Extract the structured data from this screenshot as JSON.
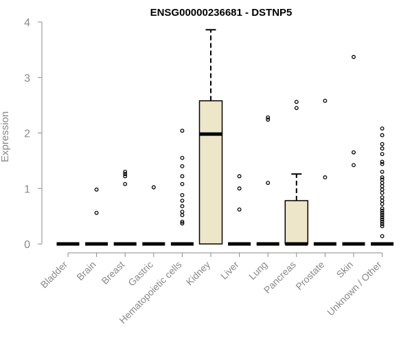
{
  "chart_data": {
    "type": "boxplot",
    "title": "ENSG00000236681 - DSTNP5",
    "xlabel": "",
    "ylabel": "Expression",
    "ylim": [
      0,
      4
    ],
    "yticks": [
      0,
      1,
      2,
      3,
      4
    ],
    "grid": false,
    "box_fill": "#ede6c9",
    "box_stroke": "#000000",
    "categories": [
      "Bladder",
      "Brain",
      "Breast",
      "Gastric",
      "Hematopoietic cells",
      "Kidney",
      "Liver",
      "Lung",
      "Pancreas",
      "Prostate",
      "Skin",
      "Unknown / Other"
    ],
    "boxes": [
      {
        "category": "Bladder",
        "q1": 0,
        "median": 0,
        "q3": 0,
        "whisker_low": 0,
        "whisker_high": 0,
        "outliers": []
      },
      {
        "category": "Brain",
        "q1": 0,
        "median": 0,
        "q3": 0,
        "whisker_low": 0,
        "whisker_high": 0,
        "outliers": [
          0.98,
          0.56
        ]
      },
      {
        "category": "Breast",
        "q1": 0,
        "median": 0,
        "q3": 0,
        "whisker_low": 0,
        "whisker_high": 0,
        "outliers": [
          1.3,
          1.26,
          1.22,
          1.08
        ]
      },
      {
        "category": "Gastric",
        "q1": 0,
        "median": 0,
        "q3": 0,
        "whisker_low": 0,
        "whisker_high": 0,
        "outliers": [
          1.02
        ]
      },
      {
        "category": "Hematopoietic cells",
        "q1": 0,
        "median": 0,
        "q3": 0,
        "whisker_low": 0,
        "whisker_high": 0,
        "outliers": [
          2.04,
          1.55,
          1.4,
          1.22,
          1.08,
          0.88,
          0.78,
          0.68,
          0.58,
          0.52,
          0.4,
          0.37
        ]
      },
      {
        "category": "Kidney",
        "q1": 0,
        "median": 1.98,
        "q3": 2.58,
        "whisker_low": 0,
        "whisker_high": 3.86,
        "outliers": []
      },
      {
        "category": "Liver",
        "q1": 0,
        "median": 0,
        "q3": 0,
        "whisker_low": 0,
        "whisker_high": 0,
        "outliers": [
          1.22,
          1.0,
          0.62
        ]
      },
      {
        "category": "Lung",
        "q1": 0,
        "median": 0,
        "q3": 0,
        "whisker_low": 0,
        "whisker_high": 0,
        "outliers": [
          2.28,
          2.24,
          1.1
        ]
      },
      {
        "category": "Pancreas",
        "q1": 0,
        "median": 0,
        "q3": 0.78,
        "whisker_low": 0,
        "whisker_high": 1.26,
        "outliers": [
          2.56,
          2.45
        ]
      },
      {
        "category": "Prostate",
        "q1": 0,
        "median": 0,
        "q3": 0,
        "whisker_low": 0,
        "whisker_high": 0,
        "outliers": [
          2.58,
          1.2
        ]
      },
      {
        "category": "Skin",
        "q1": 0,
        "median": 0,
        "q3": 0,
        "whisker_low": 0,
        "whisker_high": 0,
        "outliers": [
          3.37,
          1.65,
          1.42
        ]
      },
      {
        "category": "Unknown / Other",
        "q1": 0,
        "median": 0,
        "q3": 0,
        "whisker_low": 0,
        "whisker_high": 0,
        "outliers": [
          2.08,
          1.96,
          1.8,
          1.72,
          1.62,
          1.48,
          1.44,
          1.3,
          1.2,
          1.16,
          1.1,
          1.04,
          0.98,
          0.92,
          0.84,
          0.78,
          0.72,
          0.64,
          0.6,
          0.56,
          0.52,
          0.48,
          0.44,
          0.4,
          0.36,
          0.32,
          0.14
        ]
      }
    ]
  }
}
